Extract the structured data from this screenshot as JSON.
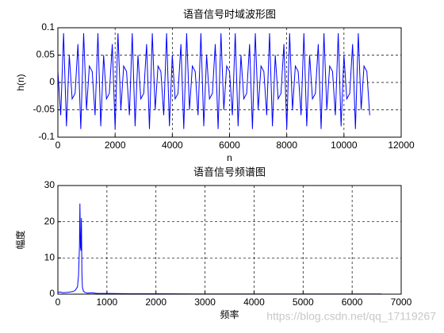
{
  "chart_data": [
    {
      "type": "line",
      "title": "语音信号时域波形图",
      "xlabel": "n",
      "ylabel": "h(n)",
      "color": "#0000ff",
      "grid": true,
      "xlim": [
        0,
        12000
      ],
      "xticks": [
        0,
        2000,
        4000,
        6000,
        8000,
        10000,
        12000
      ],
      "ylim": [
        -0.1,
        0.1
      ],
      "yticks": [
        -0.1,
        -0.05,
        0,
        0.05,
        0.1
      ],
      "x": [
        0,
        100,
        200,
        300,
        400,
        500,
        600,
        700,
        800,
        900,
        1000,
        1100,
        1200,
        1300,
        1400,
        1500,
        1600,
        1700,
        1800,
        1900,
        2000,
        2100,
        2200,
        2300,
        2400,
        2500,
        2600,
        2700,
        2800,
        2900,
        3000,
        3100,
        3200,
        3300,
        3400,
        3500,
        3600,
        3700,
        3800,
        3900,
        4000,
        4100,
        4200,
        4300,
        4400,
        4500,
        4600,
        4700,
        4800,
        4900,
        5000,
        5100,
        5200,
        5300,
        5400,
        5500,
        5600,
        5700,
        5800,
        5900,
        6000,
        6100,
        6200,
        6300,
        6400,
        6500,
        6600,
        6700,
        6800,
        6900,
        7000,
        7100,
        7200,
        7300,
        7400,
        7500,
        7600,
        7700,
        7800,
        7900,
        8000,
        8100,
        8200,
        8300,
        8400,
        8500,
        8600,
        8700,
        8800,
        8900,
        9000,
        9100,
        9200,
        9300,
        9400,
        9500,
        9600,
        9700,
        9800,
        9900,
        10000,
        10100,
        10200,
        10300,
        10400,
        10500,
        10600,
        10700,
        10800,
        10900
      ],
      "values": [
        0.02,
        -0.06,
        0.09,
        -0.08,
        0.05,
        -0.03,
        -0.02,
        0.07,
        -0.085,
        0.09,
        -0.05,
        0.03,
        0.02,
        -0.06,
        0.09,
        -0.08,
        0.05,
        -0.03,
        -0.02,
        0.07,
        -0.085,
        0.09,
        -0.05,
        0.03,
        0.02,
        -0.06,
        0.09,
        -0.08,
        0.05,
        -0.03,
        -0.02,
        0.07,
        -0.085,
        0.09,
        -0.05,
        0.03,
        0.02,
        -0.06,
        0.09,
        -0.08,
        0.05,
        -0.03,
        -0.02,
        0.07,
        -0.085,
        0.09,
        -0.05,
        0.03,
        0.02,
        -0.06,
        0.09,
        -0.08,
        0.05,
        -0.03,
        -0.02,
        0.07,
        -0.085,
        0.09,
        -0.05,
        0.03,
        0.02,
        -0.06,
        0.09,
        -0.08,
        0.05,
        -0.03,
        -0.02,
        0.07,
        -0.085,
        0.09,
        -0.05,
        0.03,
        0.02,
        -0.06,
        0.09,
        -0.08,
        0.05,
        -0.03,
        -0.02,
        0.07,
        -0.085,
        0.09,
        -0.05,
        0.03,
        0.02,
        -0.06,
        0.09,
        -0.08,
        0.05,
        -0.03,
        -0.02,
        0.07,
        -0.085,
        0.09,
        -0.05,
        0.03,
        0.02,
        -0.06,
        0.09,
        -0.08,
        0.05,
        -0.03,
        -0.02,
        0.07,
        -0.085,
        0.09,
        -0.05,
        0.03,
        0.02,
        -0.06
      ]
    },
    {
      "type": "line",
      "title": "语音信号频谱图",
      "xlabel": "频率",
      "ylabel": "幅度",
      "color": "#0000ff",
      "grid": true,
      "xlim": [
        0,
        7000
      ],
      "xticks": [
        0,
        1000,
        2000,
        3000,
        4000,
        5000,
        6000,
        7000
      ],
      "ylim": [
        0,
        30
      ],
      "yticks": [
        0,
        10,
        20,
        30
      ],
      "x": [
        0,
        50,
        100,
        200,
        300,
        350,
        400,
        420,
        440,
        450,
        460,
        470,
        480,
        490,
        500,
        520,
        550,
        600,
        700,
        800,
        1000,
        1500,
        2000,
        3000,
        4000,
        5000,
        6000,
        6600
      ],
      "values": [
        0.5,
        0.6,
        0.4,
        0.5,
        0.7,
        1,
        2,
        5,
        13,
        25,
        13,
        12,
        21,
        6,
        2,
        0.8,
        0.5,
        0.3,
        0.4,
        0.2,
        0.2,
        0.1,
        0.1,
        0.05,
        0.05,
        0.05,
        0.05,
        0.05
      ]
    }
  ],
  "watermark": "https://blog.csdn.net/qq_17119267"
}
